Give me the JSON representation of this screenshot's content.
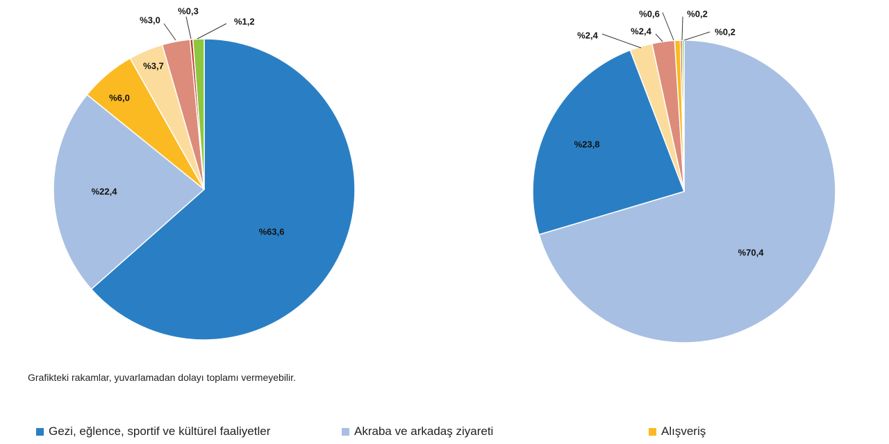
{
  "chart_data": [
    {
      "type": "pie",
      "start_angle": 0,
      "direction": "clockwise",
      "slices": [
        {
          "category": "Gezi, eğlence, sportif ve kültürel faaliyetler",
          "value": 63.6,
          "label": "%63,6",
          "color": "#2a7fc4"
        },
        {
          "category": "Akraba ve arkadaş ziyareti",
          "value": 22.4,
          "label": "%22,4",
          "color": "#a7bfe2"
        },
        {
          "category": "Alışveriş",
          "value": 6.0,
          "label": "%6,0",
          "color": "#fbba22"
        },
        {
          "category": "",
          "value": 3.7,
          "label": "%3,7",
          "color": "#fcdc9c"
        },
        {
          "category": "",
          "value": 3.0,
          "label": "%3,0",
          "color": "#dd8b7a"
        },
        {
          "category": "",
          "value": 0.3,
          "label": "%0,3",
          "color": "#c0392b"
        },
        {
          "category": "",
          "value": 1.2,
          "label": "%1,2",
          "color": "#8dc63f"
        }
      ]
    },
    {
      "type": "pie",
      "start_angle": 0,
      "direction": "clockwise",
      "slices": [
        {
          "category": "Akraba ve arkadaş ziyareti",
          "value": 70.4,
          "label": "%70,4",
          "color": "#a7bfe2"
        },
        {
          "category": "Gezi, eğlence, sportif ve kültürel faaliyetler",
          "value": 23.8,
          "label": "%23,8",
          "color": "#2a7fc4"
        },
        {
          "category": "",
          "value": 2.4,
          "label": "%2,4",
          "color": "#fcdc9c"
        },
        {
          "category": "",
          "value": 2.4,
          "label": "%2,4",
          "color": "#dd8b7a"
        },
        {
          "category": "",
          "value": 0.6,
          "label": "%0,6",
          "color": "#fbba22"
        },
        {
          "category": "",
          "value": 0.2,
          "label": "%0,2",
          "color": "#c0392b"
        },
        {
          "category": "",
          "value": 0.2,
          "label": "%0,2",
          "color": "#8dc63f"
        }
      ]
    }
  ],
  "note": "Grafikteki rakamlar, yuvarlamadan dolayı toplamı vermeyebilir.",
  "legend": [
    {
      "label": "Gezi, eğlence, sportif ve kültürel faaliyetler",
      "color": "#2a7fc4"
    },
    {
      "label": "Akraba ve arkadaş ziyareti",
      "color": "#a7bfe2"
    },
    {
      "label": "Alışveriş",
      "color": "#fbba22"
    }
  ]
}
